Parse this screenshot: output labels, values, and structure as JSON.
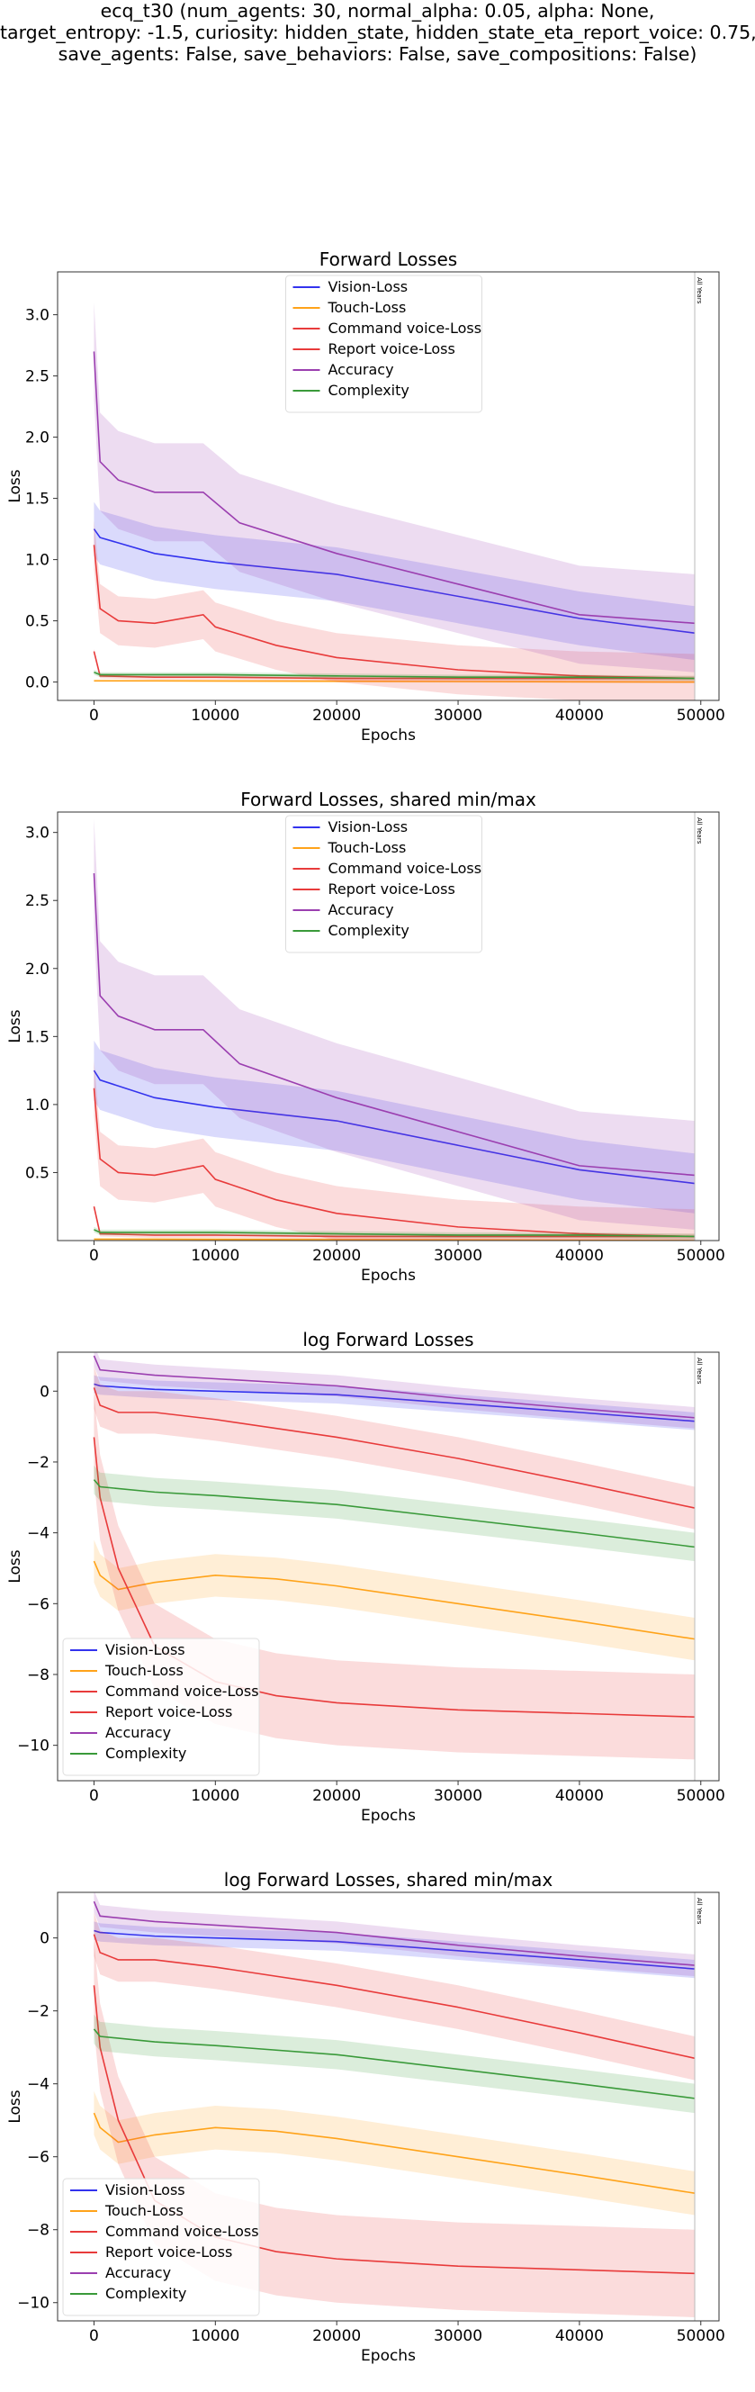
{
  "figure": {
    "suptitle_lines": [
      "ecq_t30 (num_agents: 30, normal_alpha: 0.05, alpha: None,",
      "target_entropy: -1.5, curiosity: hidden_state, hidden_state_eta_report_voice: 0.75,",
      "save_agents: False, save_behaviors: False, save_compositions: False)"
    ]
  },
  "colors": {
    "Vision-Loss": "#3333ee",
    "Touch-Loss": "#ffa31a",
    "Command voice-Loss": "#e83b3b",
    "Report voice-Loss": "#e83b3b",
    "Accuracy": "#9b3fb0",
    "Complexity": "#3a9a3a"
  },
  "chart_data": [
    {
      "type": "line",
      "title": "Forward Losses",
      "xlabel": "Epochs",
      "ylabel": "Loss",
      "xlim": [
        -3000,
        51500
      ],
      "ylim": [
        -0.15,
        3.35
      ],
      "xticks": [
        0,
        10000,
        20000,
        30000,
        40000,
        50000
      ],
      "yticks": [
        0.0,
        0.5,
        1.0,
        1.5,
        2.0,
        2.5,
        3.0
      ],
      "ytick_labels": [
        "0.0",
        "0.5",
        "1.0",
        "1.5",
        "2.0",
        "2.5",
        "3.0"
      ],
      "vline_label": "All Years",
      "legend_loc": "upper center",
      "legend": [
        "Vision-Loss",
        "Touch-Loss",
        "Command voice-Loss",
        "Report voice-Loss",
        "Accuracy",
        "Complexity"
      ],
      "series": [
        {
          "name": "Vision-Loss",
          "x": [
            0,
            500,
            5000,
            10000,
            20000,
            30000,
            40000,
            49500
          ],
          "values": [
            1.25,
            1.18,
            1.05,
            0.98,
            0.88,
            0.7,
            0.52,
            0.4
          ],
          "spread": 0.22
        },
        {
          "name": "Touch-Loss",
          "x": [
            0,
            500,
            5000,
            49500
          ],
          "values": [
            0.01,
            0.01,
            0.01,
            0.0
          ],
          "spread": 0.01
        },
        {
          "name": "Command voice-Loss",
          "x": [
            0,
            500,
            5000,
            10000,
            20000,
            30000,
            40000,
            49500
          ],
          "values": [
            0.25,
            0.05,
            0.04,
            0.04,
            0.03,
            0.03,
            0.03,
            0.03
          ],
          "spread": 0.02
        },
        {
          "name": "Report voice-Loss",
          "x": [
            0,
            500,
            2000,
            5000,
            9000,
            10000,
            15000,
            20000,
            30000,
            40000,
            49500
          ],
          "values": [
            1.12,
            0.6,
            0.5,
            0.48,
            0.55,
            0.45,
            0.3,
            0.2,
            0.1,
            0.05,
            0.03
          ],
          "spread": 0.2
        },
        {
          "name": "Accuracy",
          "x": [
            0,
            500,
            2000,
            5000,
            9000,
            12000,
            20000,
            30000,
            40000,
            49500
          ],
          "values": [
            2.7,
            1.8,
            1.65,
            1.55,
            1.55,
            1.3,
            1.05,
            0.8,
            0.55,
            0.48
          ],
          "spread": 0.4
        },
        {
          "name": "Complexity",
          "x": [
            0,
            500,
            5000,
            10000,
            20000,
            30000,
            40000,
            49500
          ],
          "values": [
            0.08,
            0.06,
            0.06,
            0.06,
            0.05,
            0.04,
            0.04,
            0.03
          ],
          "spread": 0.02
        }
      ]
    },
    {
      "type": "line",
      "title": "Forward Losses, shared min/max",
      "xlabel": "Epochs",
      "ylabel": "Loss",
      "xlim": [
        -3000,
        51500
      ],
      "ylim": [
        0.0,
        3.15
      ],
      "xticks": [
        0,
        10000,
        20000,
        30000,
        40000,
        50000
      ],
      "yticks": [
        0.5,
        1.0,
        1.5,
        2.0,
        2.5,
        3.0
      ],
      "ytick_labels": [
        "0.5",
        "1.0",
        "1.5",
        "2.0",
        "2.5",
        "3.0"
      ],
      "vline_label": "All Years",
      "legend_loc": "upper center",
      "legend": [
        "Vision-Loss",
        "Touch-Loss",
        "Command voice-Loss",
        "Report voice-Loss",
        "Accuracy",
        "Complexity"
      ],
      "series": [
        {
          "name": "Vision-Loss",
          "x": [
            0,
            500,
            5000,
            10000,
            20000,
            30000,
            40000,
            49500
          ],
          "values": [
            1.25,
            1.18,
            1.05,
            0.98,
            0.88,
            0.7,
            0.52,
            0.42
          ],
          "spread": 0.22
        },
        {
          "name": "Touch-Loss",
          "x": [
            0,
            500,
            5000,
            49500
          ],
          "values": [
            0.01,
            0.01,
            0.01,
            0.0
          ],
          "spread": 0.01
        },
        {
          "name": "Command voice-Loss",
          "x": [
            0,
            500,
            5000,
            10000,
            20000,
            30000,
            40000,
            49500
          ],
          "values": [
            0.25,
            0.05,
            0.04,
            0.04,
            0.03,
            0.03,
            0.03,
            0.03
          ],
          "spread": 0.02
        },
        {
          "name": "Report voice-Loss",
          "x": [
            0,
            500,
            2000,
            5000,
            9000,
            10000,
            15000,
            20000,
            30000,
            40000,
            49500
          ],
          "values": [
            1.12,
            0.6,
            0.5,
            0.48,
            0.55,
            0.45,
            0.3,
            0.2,
            0.1,
            0.05,
            0.03
          ],
          "spread": 0.2
        },
        {
          "name": "Accuracy",
          "x": [
            0,
            500,
            2000,
            5000,
            9000,
            12000,
            20000,
            30000,
            40000,
            49500
          ],
          "values": [
            2.7,
            1.8,
            1.65,
            1.55,
            1.55,
            1.3,
            1.05,
            0.8,
            0.55,
            0.48
          ],
          "spread": 0.4
        },
        {
          "name": "Complexity",
          "x": [
            0,
            500,
            5000,
            10000,
            20000,
            30000,
            40000,
            49500
          ],
          "values": [
            0.08,
            0.06,
            0.06,
            0.06,
            0.05,
            0.04,
            0.04,
            0.03
          ],
          "spread": 0.02
        }
      ]
    },
    {
      "type": "line",
      "title": "log Forward Losses",
      "xlabel": "Epochs",
      "ylabel": "Loss",
      "xlim": [
        -3000,
        51500
      ],
      "ylim": [
        -11.0,
        1.1
      ],
      "xticks": [
        0,
        10000,
        20000,
        30000,
        40000,
        50000
      ],
      "yticks": [
        0,
        -2,
        -4,
        -6,
        -8,
        -10
      ],
      "ytick_labels": [
        "0",
        "−2",
        "−4",
        "−6",
        "−8",
        "−10"
      ],
      "vline_label": "All Years",
      "legend_loc": "lower left",
      "legend": [
        "Vision-Loss",
        "Touch-Loss",
        "Command voice-Loss",
        "Report voice-Loss",
        "Accuracy",
        "Complexity"
      ],
      "series": [
        {
          "name": "Vision-Loss",
          "x": [
            0,
            500,
            5000,
            10000,
            20000,
            30000,
            40000,
            49500
          ],
          "values": [
            0.2,
            0.15,
            0.05,
            0.0,
            -0.1,
            -0.35,
            -0.6,
            -0.85
          ],
          "spread": 0.25
        },
        {
          "name": "Touch-Loss",
          "x": [
            0,
            500,
            2000,
            5000,
            10000,
            15000,
            20000,
            30000,
            40000,
            49500
          ],
          "values": [
            -4.8,
            -5.2,
            -5.6,
            -5.4,
            -5.2,
            -5.3,
            -5.5,
            -6.0,
            -6.5,
            -7.0
          ],
          "spread": 0.6
        },
        {
          "name": "Command voice-Loss",
          "x": [
            0,
            500,
            2000,
            5000,
            10000,
            15000,
            20000,
            30000,
            40000,
            49500
          ],
          "values": [
            -1.3,
            -3.0,
            -5.0,
            -7.2,
            -8.2,
            -8.6,
            -8.8,
            -9.0,
            -9.1,
            -9.2
          ],
          "spread": 1.2
        },
        {
          "name": "Report voice-Loss",
          "x": [
            0,
            500,
            2000,
            5000,
            10000,
            20000,
            30000,
            40000,
            49500
          ],
          "values": [
            0.1,
            -0.4,
            -0.6,
            -0.6,
            -0.8,
            -1.3,
            -1.9,
            -2.6,
            -3.3
          ],
          "spread": 0.6
        },
        {
          "name": "Accuracy",
          "x": [
            0,
            500,
            5000,
            10000,
            20000,
            30000,
            40000,
            49500
          ],
          "values": [
            1.0,
            0.6,
            0.45,
            0.35,
            0.15,
            -0.2,
            -0.5,
            -0.75
          ],
          "spread": 0.3
        },
        {
          "name": "Complexity",
          "x": [
            0,
            500,
            5000,
            10000,
            20000,
            30000,
            40000,
            49500
          ],
          "values": [
            -2.5,
            -2.7,
            -2.85,
            -2.95,
            -3.2,
            -3.6,
            -4.0,
            -4.4
          ],
          "spread": 0.4
        }
      ]
    },
    {
      "type": "line",
      "title": "log Forward Losses, shared min/max",
      "xlabel": "Epochs",
      "ylabel": "Loss",
      "xlim": [
        -3000,
        51500
      ],
      "ylim": [
        -10.5,
        1.25
      ],
      "xticks": [
        0,
        10000,
        20000,
        30000,
        40000,
        50000
      ],
      "yticks": [
        0,
        -2,
        -4,
        -6,
        -8,
        -10
      ],
      "ytick_labels": [
        "0",
        "−2",
        "−4",
        "−6",
        "−8",
        "−10"
      ],
      "vline_label": "All Years",
      "legend_loc": "lower left",
      "legend": [
        "Vision-Loss",
        "Touch-Loss",
        "Command voice-Loss",
        "Report voice-Loss",
        "Accuracy",
        "Complexity"
      ],
      "series": [
        {
          "name": "Vision-Loss",
          "x": [
            0,
            500,
            5000,
            10000,
            20000,
            30000,
            40000,
            49500
          ],
          "values": [
            0.2,
            0.15,
            0.05,
            0.0,
            -0.1,
            -0.35,
            -0.6,
            -0.85
          ],
          "spread": 0.25
        },
        {
          "name": "Touch-Loss",
          "x": [
            0,
            500,
            2000,
            5000,
            10000,
            15000,
            20000,
            30000,
            40000,
            49500
          ],
          "values": [
            -4.8,
            -5.2,
            -5.6,
            -5.4,
            -5.2,
            -5.3,
            -5.5,
            -6.0,
            -6.5,
            -7.0
          ],
          "spread": 0.6
        },
        {
          "name": "Command voice-Loss",
          "x": [
            0,
            500,
            2000,
            5000,
            10000,
            15000,
            20000,
            30000,
            40000,
            49500
          ],
          "values": [
            -1.3,
            -3.0,
            -5.0,
            -7.2,
            -8.2,
            -8.6,
            -8.8,
            -9.0,
            -9.1,
            -9.2
          ],
          "spread": 1.2
        },
        {
          "name": "Report voice-Loss",
          "x": [
            0,
            500,
            2000,
            5000,
            10000,
            20000,
            30000,
            40000,
            49500
          ],
          "values": [
            0.1,
            -0.4,
            -0.6,
            -0.6,
            -0.8,
            -1.3,
            -1.9,
            -2.6,
            -3.3
          ],
          "spread": 0.6
        },
        {
          "name": "Accuracy",
          "x": [
            0,
            500,
            5000,
            10000,
            20000,
            30000,
            40000,
            49500
          ],
          "values": [
            1.0,
            0.6,
            0.45,
            0.35,
            0.15,
            -0.2,
            -0.5,
            -0.75
          ],
          "spread": 0.3
        },
        {
          "name": "Complexity",
          "x": [
            0,
            500,
            5000,
            10000,
            20000,
            30000,
            40000,
            49500
          ],
          "values": [
            -2.5,
            -2.7,
            -2.85,
            -2.95,
            -3.2,
            -3.6,
            -4.0,
            -4.4
          ],
          "spread": 0.4
        }
      ]
    }
  ]
}
